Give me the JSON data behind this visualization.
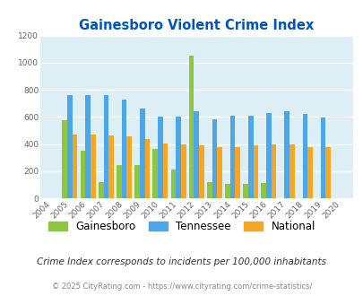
{
  "title": "Gainesboro Violent Crime Index",
  "years": [
    2004,
    2005,
    2006,
    2007,
    2008,
    2009,
    2010,
    2011,
    2012,
    2013,
    2014,
    2015,
    2016,
    2017,
    2018,
    2019,
    2020
  ],
  "gainesboro": [
    null,
    575,
    350,
    120,
    245,
    245,
    365,
    210,
    1050,
    120,
    105,
    105,
    110,
    null,
    null,
    null,
    null
  ],
  "tennessee": [
    null,
    760,
    760,
    760,
    730,
    660,
    605,
    605,
    640,
    580,
    610,
    610,
    630,
    645,
    620,
    595,
    null
  ],
  "national": [
    null,
    470,
    470,
    465,
    455,
    435,
    405,
    395,
    390,
    375,
    380,
    390,
    400,
    400,
    380,
    380,
    null
  ],
  "gainesboro_color": "#8dc63f",
  "tennessee_color": "#4da6e8",
  "national_color": "#f5a623",
  "bg_color": "#ddeef5",
  "title_color": "#0055bb",
  "footer_text": "Crime Index corresponds to incidents per 100,000 inhabitants",
  "copyright_text": "© 2025 CityRating.com - https://www.cityrating.com/crime-statistics/",
  "ylim": [
    0,
    1200
  ],
  "yticks": [
    0,
    200,
    400,
    600,
    800,
    1000,
    1200
  ],
  "bar_width": 0.28
}
